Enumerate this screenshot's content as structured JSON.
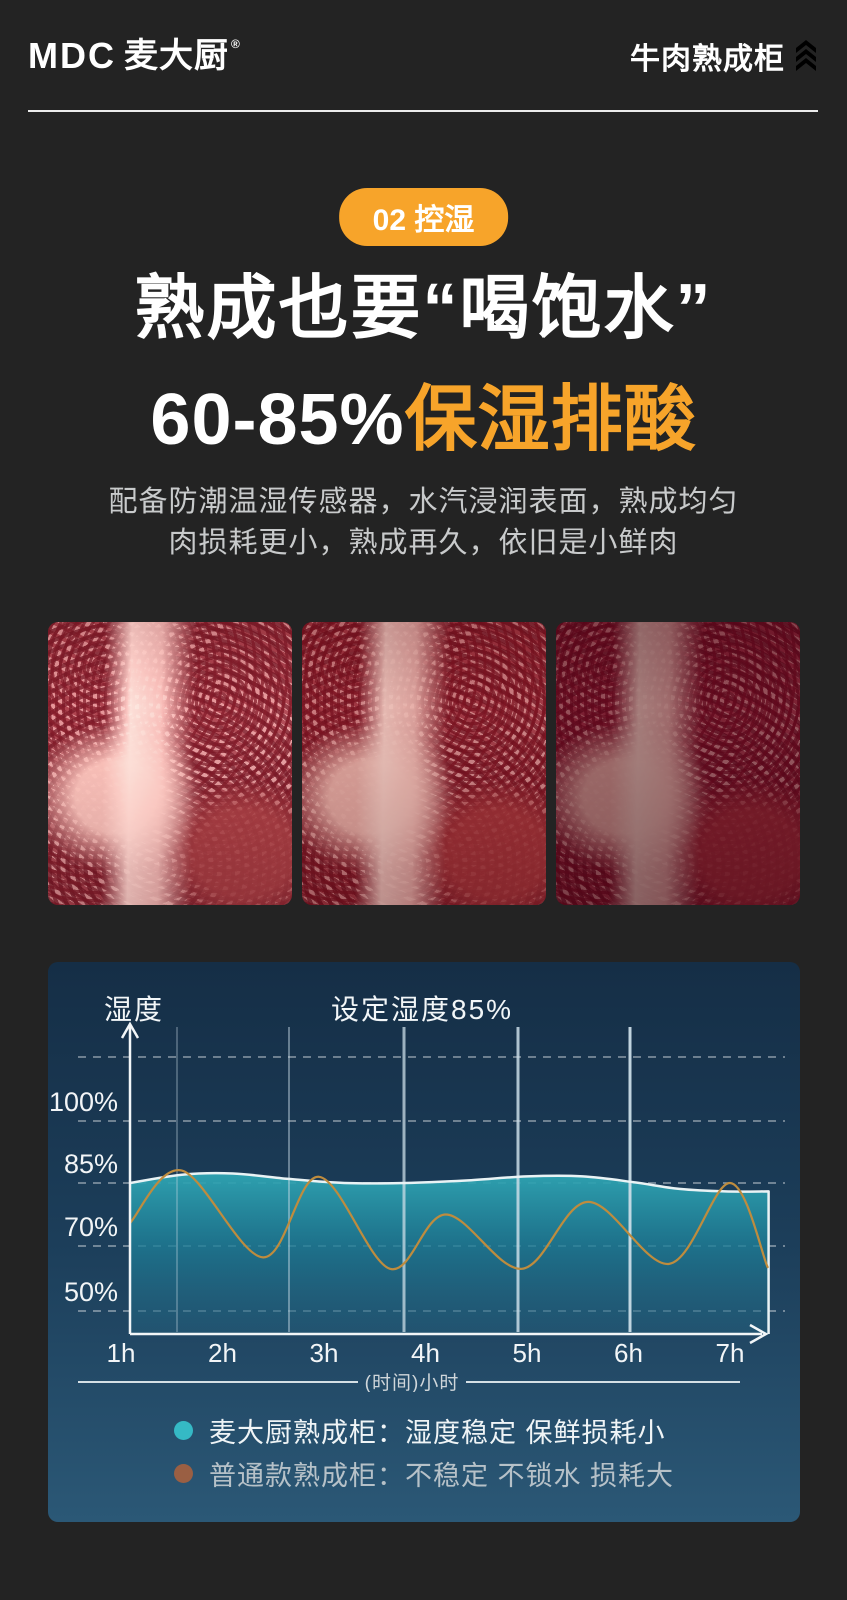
{
  "header": {
    "logo_latin": "MDC",
    "logo_cn": "麦大厨",
    "registered": "®",
    "product": "牛肉熟成柜",
    "accent_color": "#F5A623"
  },
  "hero": {
    "badge": "02 控湿",
    "title": "熟成也要“喝饱水”",
    "range": "60-85%",
    "range_suffix": "保湿排酸",
    "desc1": "配备防潮温湿传感器，水汽浸润表面，熟成均匀",
    "desc2": "肉损耗更小，熟成再久，依旧是小鲜肉",
    "accent_color": "#F7A42A"
  },
  "gallery": {
    "items": [
      "beef-marbling-bright",
      "beef-marbling-medium",
      "beef-marbling-dark"
    ]
  },
  "chart_data": {
    "type": "area+line",
    "title": "设定湿度85%",
    "y_axis_label": "湿度",
    "x_axis_label": "(时间)小时",
    "set_humidity_pct": 85,
    "y_ticks": [
      {
        "label": "100%",
        "value": 100
      },
      {
        "label": "85%",
        "value": 85
      },
      {
        "label": "70%",
        "value": 70
      },
      {
        "label": "50%",
        "value": 50
      }
    ],
    "x_ticks": [
      "1h",
      "2h",
      "3h",
      "4h",
      "5h",
      "6h",
      "7h"
    ],
    "grid": "dashed-horizontal + solid-vertical",
    "series": [
      {
        "name": "麦大厨熟成柜",
        "style": "area",
        "color": "#2FA6B4",
        "edge_color": "#E9F3F5",
        "points": [
          [
            1.09,
            85
          ],
          [
            1.6,
            87
          ],
          [
            2.1,
            87.3
          ],
          [
            2.65,
            86
          ],
          [
            3.2,
            85
          ],
          [
            3.8,
            85
          ],
          [
            4.4,
            85.6
          ],
          [
            5.0,
            86.6
          ],
          [
            5.55,
            86.6
          ],
          [
            6.05,
            85.2
          ],
          [
            6.5,
            83.6
          ],
          [
            6.95,
            83
          ],
          [
            7.38,
            83
          ]
        ]
      },
      {
        "name": "普通款熟成柜",
        "style": "line",
        "color": "#BE8C3E",
        "points": [
          [
            1.09,
            75.5
          ],
          [
            1.6,
            88
          ],
          [
            2.4,
            66.5
          ],
          [
            2.95,
            86.5
          ],
          [
            3.65,
            63
          ],
          [
            4.2,
            77.5
          ],
          [
            4.95,
            63
          ],
          [
            5.6,
            80.5
          ],
          [
            6.4,
            64.5
          ],
          [
            7.0,
            85
          ],
          [
            7.37,
            63.5
          ]
        ]
      }
    ],
    "legend": [
      {
        "dot_color": "#35B9C5",
        "label": "麦大厨熟成柜：湿度稳定 保鲜损耗小"
      },
      {
        "dot_color": "#9A5F43",
        "label": "普通款熟成柜：不稳定 不锁水 损耗大"
      }
    ]
  }
}
